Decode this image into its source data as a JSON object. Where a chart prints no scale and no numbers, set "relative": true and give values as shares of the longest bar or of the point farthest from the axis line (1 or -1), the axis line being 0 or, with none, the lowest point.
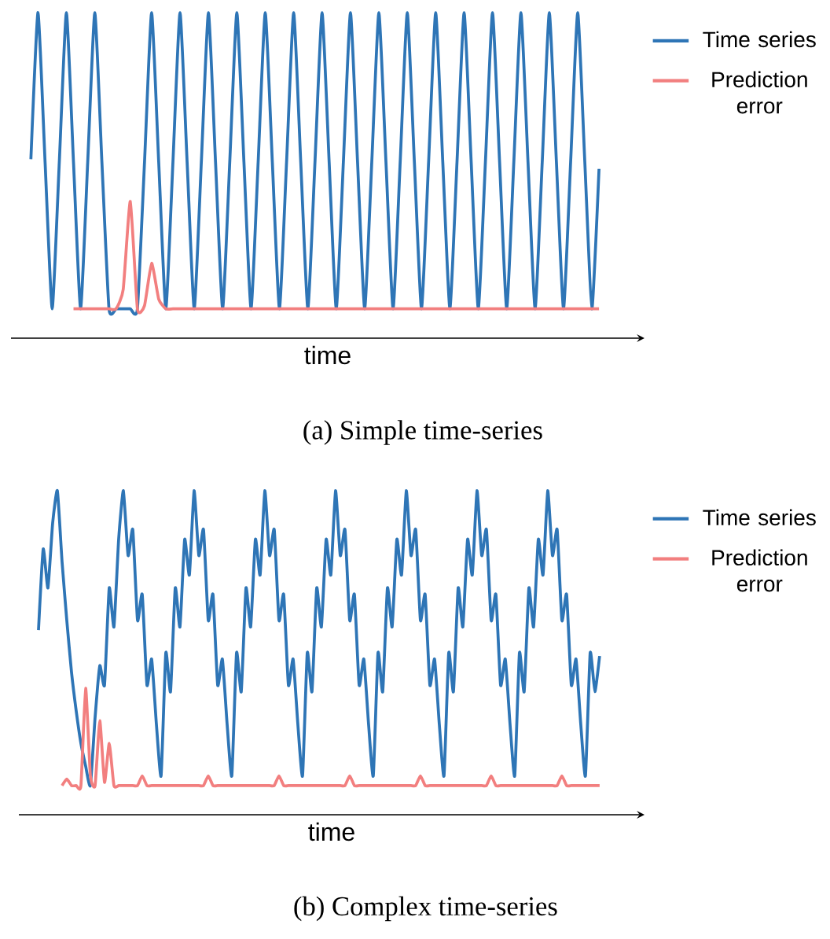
{
  "chart_data": [
    {
      "type": "line",
      "relative": true,
      "xlabel": "time",
      "legend": "right",
      "annotations": [
        "(a) Simple time-series"
      ],
      "categories": [
        null,
        null,
        null,
        null,
        null,
        null,
        null,
        null,
        null,
        null,
        null,
        null,
        null,
        null,
        null,
        null,
        null,
        null,
        null,
        null,
        null,
        null,
        null,
        null,
        null,
        null,
        null,
        null,
        null,
        null,
        null,
        null,
        null,
        null,
        null,
        null,
        null,
        null,
        null,
        null,
        null,
        null,
        null,
        null,
        null,
        null,
        null,
        null,
        null,
        null,
        null,
        null,
        null,
        null,
        null,
        null,
        null,
        null,
        null,
        null,
        null,
        null,
        null,
        null,
        null,
        null,
        null,
        null,
        null,
        null,
        null,
        null,
        null,
        null,
        null,
        null,
        null,
        null,
        null,
        null,
        null
      ],
      "series": [
        {
          "name": "Time series",
          "color": "#2e75b6",
          "values": [
            0.55,
            1,
            0.54,
            0.09,
            0.54,
            1,
            0.54,
            0.09,
            0.54,
            1,
            0.54,
            0.09,
            0.09,
            0.09,
            0.09,
            0.09,
            0.54,
            1,
            0.54,
            0.09,
            0.54,
            1,
            0.54,
            0.09,
            0.54,
            1,
            0.54,
            0.09,
            0.54,
            1,
            0.54,
            0.09,
            0.54,
            1,
            0.54,
            0.09,
            0.54,
            1,
            0.54,
            0.09,
            0.54,
            1,
            0.54,
            0.09,
            0.54,
            1,
            0.54,
            0.09,
            0.54,
            1,
            0.54,
            0.09,
            0.54,
            1,
            0.54,
            0.09,
            0.54,
            1,
            0.54,
            0.09,
            0.54,
            1,
            0.54,
            0.09,
            0.54,
            1,
            0.54,
            0.09,
            0.54,
            1,
            0.54,
            0.09,
            0.54,
            1,
            0.54,
            0.09,
            0.54,
            1,
            0.54,
            0.09,
            0.52
          ]
        },
        {
          "name": "Prediction error",
          "color": "#f27f7f",
          "values": [
            null,
            null,
            null,
            null,
            null,
            null,
            0.09,
            0.09,
            0.09,
            0.09,
            0.09,
            0.09,
            0.09,
            0.15,
            0.42,
            0.09,
            0.1,
            0.23,
            0.12,
            0.09,
            0.09,
            0.09,
            0.09,
            0.09,
            0.09,
            0.09,
            0.09,
            0.09,
            0.09,
            0.09,
            0.09,
            0.09,
            0.09,
            0.09,
            0.09,
            0.09,
            0.09,
            0.09,
            0.09,
            0.09,
            0.09,
            0.09,
            0.09,
            0.09,
            0.09,
            0.09,
            0.09,
            0.09,
            0.09,
            0.09,
            0.09,
            0.09,
            0.09,
            0.09,
            0.09,
            0.09,
            0.09,
            0.09,
            0.09,
            0.09,
            0.09,
            0.09,
            0.09,
            0.09,
            0.09,
            0.09,
            0.09,
            0.09,
            0.09,
            0.09,
            0.09,
            0.09,
            0.09,
            0.09,
            0.09,
            0.09,
            0.09,
            0.09,
            0.09,
            0.09,
            0.09
          ]
        }
      ]
    },
    {
      "type": "line",
      "relative": true,
      "xlabel": "time",
      "legend": "right",
      "annotations": [
        "(b) Complex time-series"
      ],
      "categories": [
        null,
        null,
        null,
        null,
        null,
        null,
        null,
        null,
        null,
        null,
        null,
        null,
        null,
        null,
        null,
        null,
        null,
        null,
        null,
        null,
        null,
        null,
        null,
        null,
        null,
        null,
        null,
        null,
        null,
        null,
        null,
        null,
        null,
        null,
        null,
        null,
        null,
        null,
        null,
        null,
        null,
        null,
        null,
        null,
        null,
        null,
        null,
        null,
        null,
        null,
        null,
        null,
        null,
        null,
        null,
        null,
        null,
        null,
        null,
        null,
        null,
        null,
        null,
        null,
        null,
        null,
        null,
        null,
        null,
        null,
        null,
        null,
        null,
        null,
        null,
        null,
        null,
        null,
        null,
        null,
        null,
        null,
        null,
        null,
        null,
        null,
        null,
        null,
        null,
        null,
        null,
        null,
        null,
        null,
        null,
        null,
        null,
        null,
        null,
        null,
        null,
        null,
        null,
        null,
        null,
        null,
        null,
        null,
        null,
        null,
        null,
        null,
        null,
        null,
        null,
        null,
        null,
        null,
        null,
        null
      ],
      "series": [
        {
          "name": "Time series",
          "color": "#2e75b6",
          "values": [
            0.57,
            0.82,
            0.7,
            0.9,
            1,
            0.78,
            0.6,
            0.44,
            0.32,
            0.22,
            0.15,
            0.09,
            0.3,
            0.46,
            0.4,
            0.7,
            0.58,
            0.85,
            1,
            0.8,
            0.88,
            0.6,
            0.68,
            0.4,
            0.48,
            0.28,
            0.12,
            0.5,
            0.38,
            0.7,
            0.58,
            0.85,
            0.74,
            1,
            0.8,
            0.88,
            0.6,
            0.68,
            0.4,
            0.48,
            0.28,
            0.12,
            0.5,
            0.38,
            0.7,
            0.58,
            0.85,
            0.74,
            1,
            0.8,
            0.88,
            0.6,
            0.68,
            0.4,
            0.48,
            0.28,
            0.12,
            0.5,
            0.38,
            0.7,
            0.58,
            0.85,
            0.74,
            1,
            0.8,
            0.88,
            0.6,
            0.68,
            0.4,
            0.48,
            0.28,
            0.12,
            0.5,
            0.38,
            0.7,
            0.58,
            0.85,
            0.74,
            1,
            0.8,
            0.88,
            0.6,
            0.68,
            0.4,
            0.48,
            0.28,
            0.12,
            0.5,
            0.38,
            0.7,
            0.58,
            0.85,
            0.74,
            1,
            0.8,
            0.88,
            0.6,
            0.68,
            0.4,
            0.48,
            0.28,
            0.12,
            0.5,
            0.38,
            0.7,
            0.58,
            0.85,
            0.74,
            1,
            0.8,
            0.88,
            0.6,
            0.68,
            0.4,
            0.48,
            0.28,
            0.12,
            0.5,
            0.38,
            0.49
          ]
        },
        {
          "name": "Prediction error",
          "color": "#f27f7f",
          "values": [
            null,
            null,
            null,
            null,
            null,
            0.09,
            0.11,
            0.09,
            0.09,
            0.09,
            0.39,
            0.12,
            0.09,
            0.29,
            0.1,
            0.22,
            0.09,
            0.09,
            0.09,
            0.09,
            0.09,
            0.09,
            0.12,
            0.09,
            0.09,
            0.09,
            0.09,
            0.09,
            0.09,
            0.09,
            0.09,
            0.09,
            0.09,
            0.09,
            0.09,
            0.09,
            0.12,
            0.09,
            0.09,
            0.09,
            0.09,
            0.09,
            0.09,
            0.09,
            0.09,
            0.09,
            0.09,
            0.09,
            0.09,
            0.09,
            0.09,
            0.12,
            0.09,
            0.09,
            0.09,
            0.09,
            0.09,
            0.09,
            0.09,
            0.09,
            0.09,
            0.09,
            0.09,
            0.09,
            0.09,
            0.09,
            0.12,
            0.09,
            0.09,
            0.09,
            0.09,
            0.09,
            0.09,
            0.09,
            0.09,
            0.09,
            0.09,
            0.09,
            0.09,
            0.09,
            0.09,
            0.12,
            0.09,
            0.09,
            0.09,
            0.09,
            0.09,
            0.09,
            0.09,
            0.09,
            0.09,
            0.09,
            0.09,
            0.09,
            0.09,
            0.09,
            0.12,
            0.09,
            0.09,
            0.09,
            0.09,
            0.09,
            0.09,
            0.09,
            0.09,
            0.09,
            0.09,
            0.09,
            0.09,
            0.09,
            0.09,
            0.12,
            0.09,
            0.09,
            0.09,
            0.09,
            0.09,
            0.09,
            0.09,
            0.09
          ]
        }
      ]
    }
  ]
}
